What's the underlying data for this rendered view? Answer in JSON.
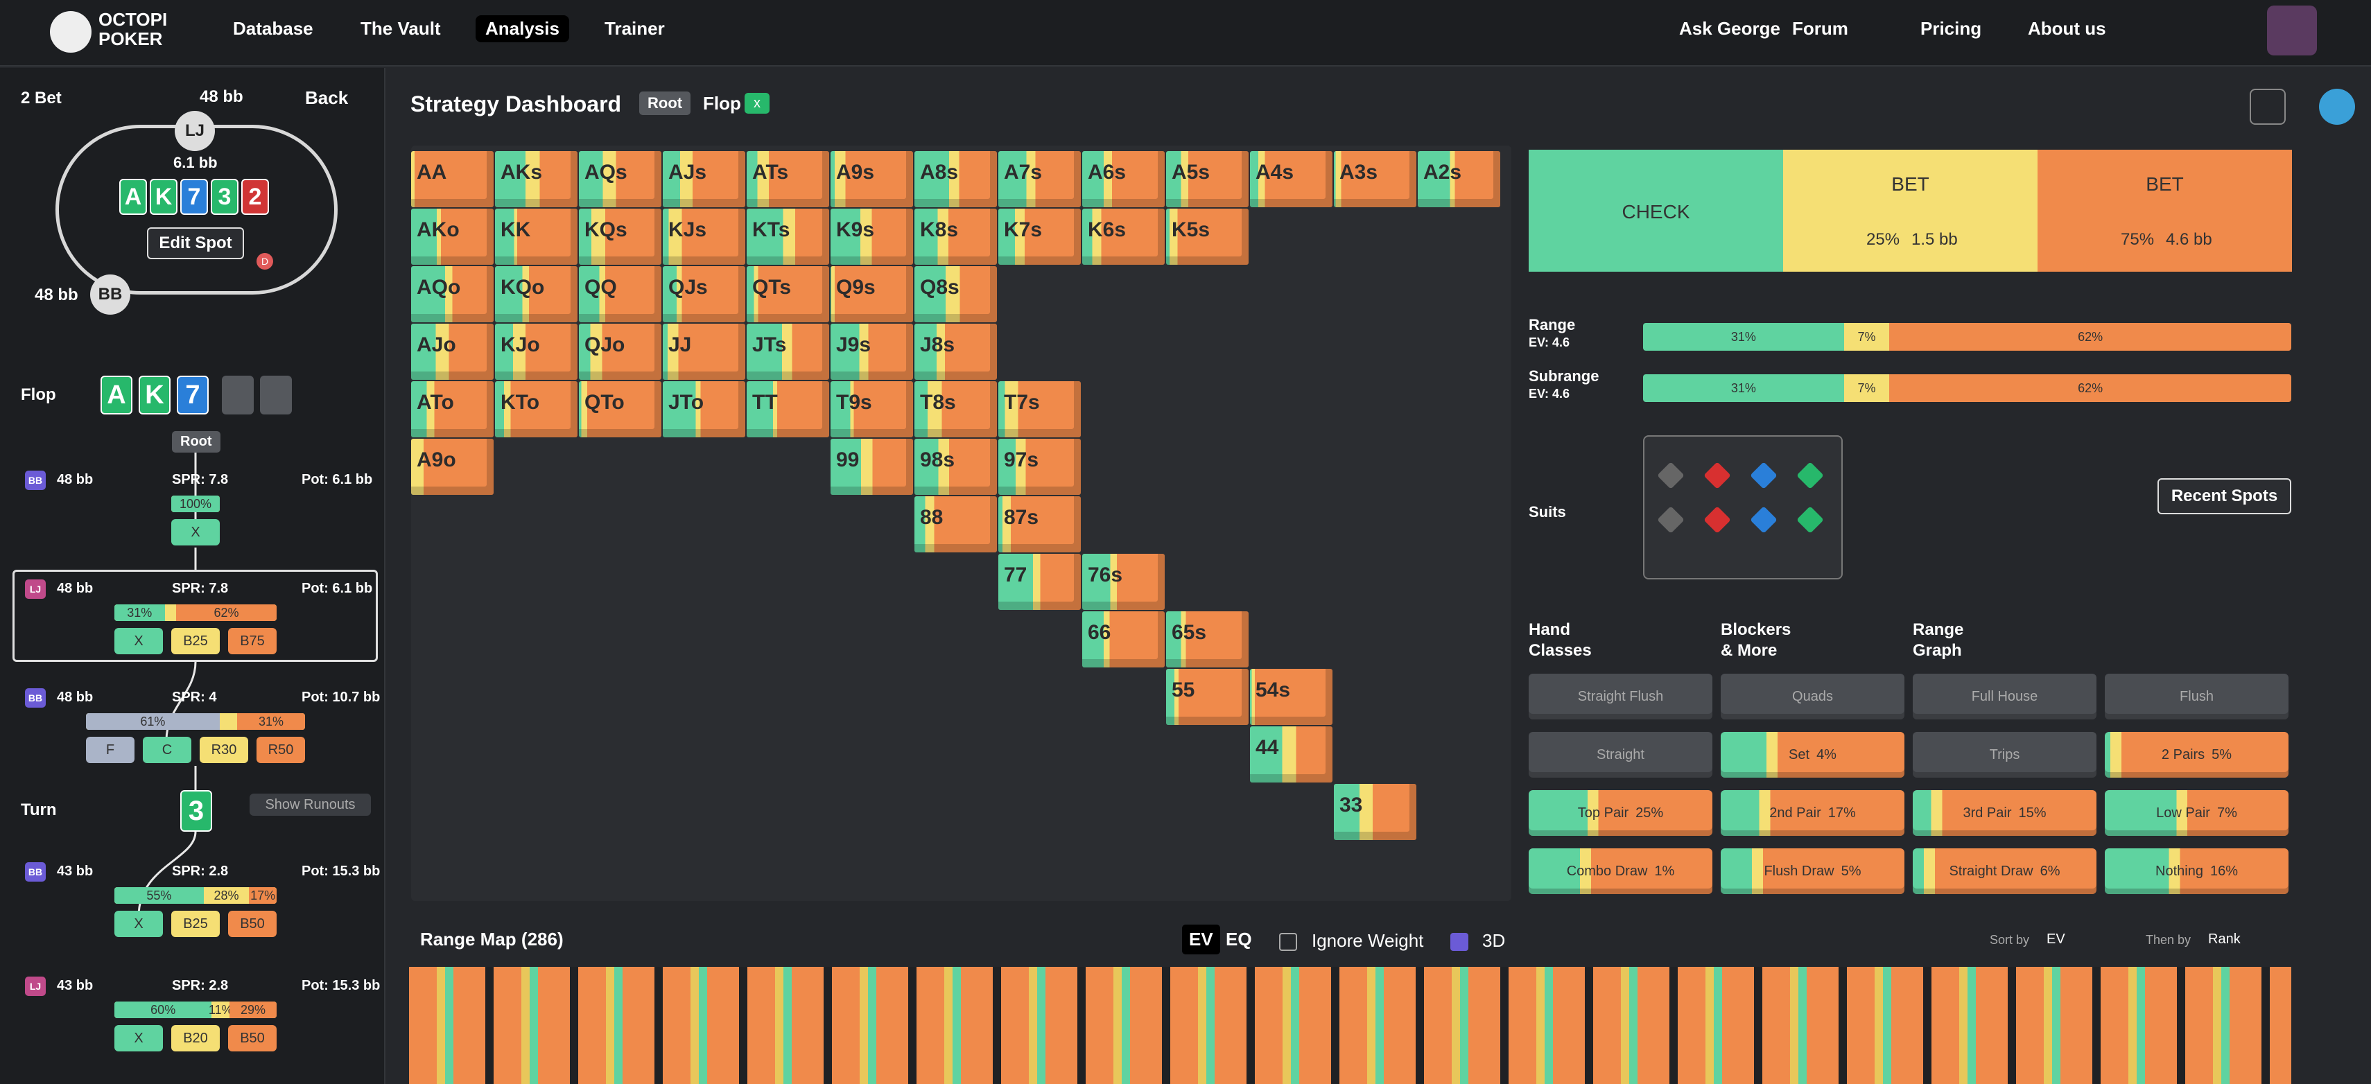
{
  "nav": {
    "logo": [
      "OCTOPI",
      "POKER"
    ],
    "left": [
      "Database",
      "The Vault",
      "Analysis",
      "Trainer"
    ],
    "right": [
      "Ask George",
      "Forum",
      "Pricing",
      "About us"
    ]
  },
  "spot": {
    "street": "2 Bet",
    "top_stack": "48 bb",
    "back": "Back",
    "lj": "LJ",
    "pot": "6.1 bb",
    "board": [
      "A",
      "K",
      "7",
      "3",
      "2"
    ],
    "edit": "Edit Spot",
    "dealer": "D",
    "bb": "BB",
    "bb_stack": "48 bb"
  },
  "flop": {
    "label": "Flop",
    "cards": [
      "A",
      "K",
      "7"
    ]
  },
  "tree": {
    "root": "Root",
    "nodes": [
      {
        "pos": "BB",
        "stack": "48 bb",
        "spr": "SPR: 7.8",
        "pot": "Pot: 6.1 bb",
        "freqs": [
          "100%"
        ],
        "actions": [
          "X"
        ]
      },
      {
        "pos": "LJ",
        "stack": "48 bb",
        "spr": "SPR: 7.8",
        "pot": "Pot: 6.1 bb",
        "freqs": [
          "31%",
          "62%"
        ],
        "actions": [
          "X",
          "B25",
          "B75"
        ]
      },
      {
        "pos": "BB",
        "stack": "48 bb",
        "spr": "SPR: 4",
        "pot": "Pot: 10.7 bb",
        "freqs": [
          "61%",
          "31%"
        ],
        "actions": [
          "F",
          "C",
          "R30",
          "R50"
        ]
      },
      {
        "pos": "BB",
        "stack": "43 bb",
        "spr": "SPR: 2.8",
        "pot": "Pot: 15.3 bb",
        "freqs": [
          "55%",
          "28%",
          "17%"
        ],
        "actions": [
          "X",
          "B25",
          "B50"
        ]
      },
      {
        "pos": "LJ",
        "stack": "43 bb",
        "spr": "SPR: 2.8",
        "pot": "Pot: 15.3 bb",
        "freqs": [
          "60%",
          "11%",
          "29%"
        ],
        "actions": [
          "X",
          "B20",
          "B50"
        ]
      }
    ],
    "turn": {
      "label": "Turn",
      "card": "3",
      "runouts": "Show Runouts"
    }
  },
  "dashboard": {
    "title": "Strategy Dashboard",
    "crumbs": [
      "Root",
      "Flop",
      "x"
    ]
  },
  "matrix": {
    "hands": [
      "AA",
      "AKs",
      "AQs",
      "AJs",
      "ATs",
      "A9s",
      "A8s",
      "A7s",
      "A6s",
      "A5s",
      "A4s",
      "A3s",
      "A2s",
      "AKo",
      "KK",
      "KQs",
      "KJs",
      "KTs",
      "K9s",
      "K8s",
      "K7s",
      "K6s",
      "K5s",
      "AQo",
      "KQo",
      "QQ",
      "QJs",
      "QTs",
      "Q9s",
      "Q8s",
      "AJo",
      "KJo",
      "QJo",
      "JJ",
      "JTs",
      "J9s",
      "J8s",
      "ATo",
      "KTo",
      "QTo",
      "JTo",
      "TT",
      "T9s",
      "T8s",
      "T7s",
      "A9o",
      "99",
      "98s",
      "97s",
      "88",
      "87s",
      "77",
      "76s",
      "66",
      "65s",
      "55",
      "54s",
      "44",
      "33"
    ]
  },
  "actions": [
    {
      "label": "CHECK"
    },
    {
      "label": "BET",
      "size": "25%",
      "bb": "1.5 bb"
    },
    {
      "label": "BET",
      "size": "75%",
      "bb": "4.6 bb"
    }
  ],
  "ranges": [
    {
      "label": "Range",
      "ev": "EV: 4.6",
      "freqs": [
        "31%",
        "7%",
        "62%"
      ]
    },
    {
      "label": "Subrange",
      "ev": "EV: 4.6",
      "freqs": [
        "31%",
        "7%",
        "62%"
      ]
    }
  ],
  "suits": {
    "label": "Suits"
  },
  "recent": "Recent Spots",
  "class_tabs": [
    [
      "Hand",
      "Classes"
    ],
    [
      "Blockers",
      "& More"
    ],
    [
      "Range",
      "Graph"
    ]
  ],
  "classes": [
    {
      "name": "Straight Flush"
    },
    {
      "name": "Quads"
    },
    {
      "name": "Full House"
    },
    {
      "name": "Flush"
    },
    {
      "name": "Straight"
    },
    {
      "name": "Set",
      "pct": "4%"
    },
    {
      "name": "Trips"
    },
    {
      "name": "2 Pairs",
      "pct": "5%"
    },
    {
      "name": "Top Pair",
      "pct": "25%"
    },
    {
      "name": "2nd Pair",
      "pct": "17%"
    },
    {
      "name": "3rd Pair",
      "pct": "15%"
    },
    {
      "name": "Low Pair",
      "pct": "7%"
    },
    {
      "name": "Combo Draw",
      "pct": "1%"
    },
    {
      "name": "Flush Draw",
      "pct": "5%"
    },
    {
      "name": "Straight Draw",
      "pct": "6%"
    },
    {
      "name": "Nothing",
      "pct": "16%"
    }
  ],
  "rangemap": {
    "title": "Range Map (286)",
    "toggles": [
      "EV",
      "EQ"
    ],
    "ignore": "Ignore Weight",
    "three_d": "3D",
    "sort_label": "Sort by",
    "sort": "EV",
    "then_label": "Then by",
    "then": "Rank"
  }
}
